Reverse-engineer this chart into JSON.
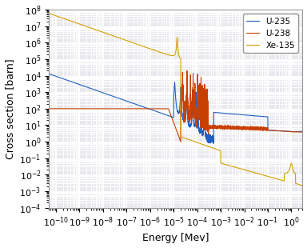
{
  "title": "",
  "xlabel": "Energy [Mev]",
  "ylabel": "Cross section [barn]",
  "xlim": [
    5e-11,
    3.0
  ],
  "ylim": [
    0.0001,
    100000000.0
  ],
  "legend": [
    "U-235",
    "U-238",
    "Xe-135"
  ],
  "colors": {
    "U235": "#2060c0",
    "U238": "#c84000",
    "Xe135": "#d4a000"
  },
  "background": "#e8e8ee",
  "grid_color": "#ffffff",
  "linewidth": 0.8,
  "tick_fontsize": 8,
  "label_fontsize": 9
}
